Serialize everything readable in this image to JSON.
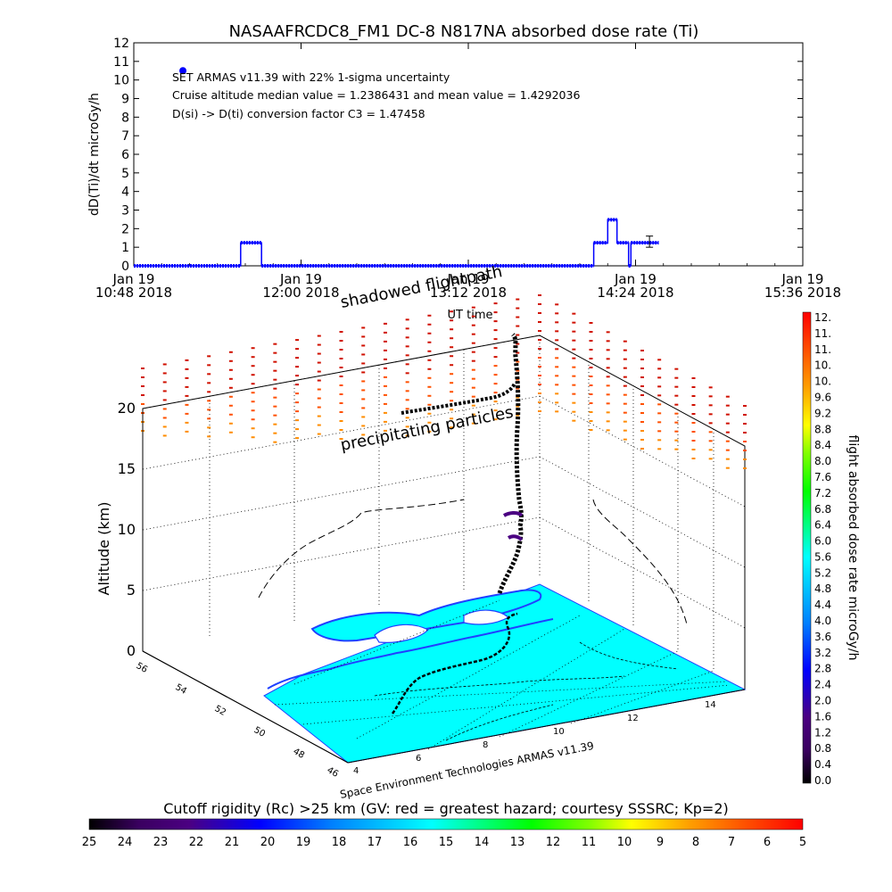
{
  "title": "NASAAFRCDC8_FM1 DC-8   N817NA absorbed dose rate (Ti)",
  "timeseries": {
    "ylabel": "dD(Ti)/dt microGy/h",
    "xlabel": "UT time",
    "annotations": [
      "SET ARMAS v11.39 with 22% 1-sigma uncertainty",
      "Cruise altitude median value = 1.2386431 and mean value = 1.4292036",
      "D(si) -> D(ti) conversion factor C3 = 1.47458"
    ]
  },
  "chart_data": [
    {
      "type": "line",
      "title": "NASAAFRCDC8_FM1 DC-8   N817NA absorbed dose rate (Ti)",
      "xlabel": "UT time",
      "ylabel": "dD(Ti)/dt microGy/h",
      "x_unit": "minutes after 10:48 UT",
      "xlim": [
        0,
        288
      ],
      "ylim": [
        0,
        12
      ],
      "yticks": [
        0,
        1,
        2,
        3,
        4,
        5,
        6,
        7,
        8,
        9,
        10,
        11,
        12
      ],
      "xtick_labels": [
        [
          "Jan 19",
          "10:48 2018"
        ],
        [
          "Jan 19",
          "12:00 2018"
        ],
        [
          "Jan 19",
          "13:12 2018"
        ],
        [
          "Jan 19",
          "14:24 2018"
        ],
        [
          "Jan 19",
          "15:36 2018"
        ]
      ],
      "series": [
        {
          "color": "#0000ff",
          "points": [
            [
              0,
              0
            ],
            [
              46,
              0
            ],
            [
              46,
              1.24
            ],
            [
              55,
              1.24
            ],
            [
              55,
              0
            ],
            [
              198,
              0
            ],
            [
              198,
              1.24
            ],
            [
              204,
              1.24
            ],
            [
              204,
              2.48
            ],
            [
              208,
              2.48
            ],
            [
              208,
              1.24
            ],
            [
              213,
              1.24
            ],
            [
              213,
              0
            ],
            [
              214,
              0
            ],
            [
              214,
              1.24
            ],
            [
              226,
              1.24
            ]
          ]
        }
      ],
      "legend_marker": {
        "x": 10,
        "y": 10.5
      },
      "error_bar": {
        "x": 222,
        "y": 1.3,
        "low": 1.0,
        "high": 1.6
      }
    },
    {
      "type": "scatter",
      "title": "",
      "xlabel": "",
      "ylabel": "Altitude (km)",
      "zlim": [
        0,
        20
      ],
      "ztick_labels": [
        "0",
        "5",
        "10",
        "15",
        "20"
      ],
      "latitude_ticks": [
        "56",
        "54",
        "52",
        "50",
        "48",
        "46"
      ],
      "longitude_ticks": [
        "4",
        "6",
        "8",
        "10",
        "12",
        "14"
      ],
      "annotations": [
        "shadowed flightpath",
        "precipitating particles"
      ]
    }
  ],
  "colorbar_right": {
    "label": "flight absorbed dose rate microGy/h",
    "tick_labels": [
      "12.",
      "11.",
      "11.",
      "10.",
      "10.",
      "9.6",
      "9.2",
      "8.8",
      "8.4",
      "8.0",
      "7.6",
      "7.2",
      "6.8",
      "6.4",
      "6.0",
      "5.6",
      "5.2",
      "4.8",
      "4.4",
      "4.0",
      "3.6",
      "3.2",
      "2.8",
      "2.4",
      "2.0",
      "1.6",
      "1.2",
      "0.8",
      "0.4",
      "0.0"
    ]
  },
  "colorbar_bottom": {
    "title": "Cutoff rigidity (Rc) >25 km (GV: red = greatest hazard; courtesy SSSRC; Kp=2)",
    "tick_labels": [
      "25",
      "24",
      "23",
      "22",
      "21",
      "20",
      "19",
      "18",
      "17",
      "16",
      "15",
      "14",
      "13",
      "12",
      "11",
      "10",
      "9",
      "8",
      "7",
      "6",
      "5"
    ]
  },
  "credit": "Space Environment Technologies ARMAS v11.39",
  "colors": {
    "dose_line": "#0000ff",
    "map_ocean": "#00ffff",
    "map_coast": "#2040ff",
    "flight_path": "#000000"
  }
}
